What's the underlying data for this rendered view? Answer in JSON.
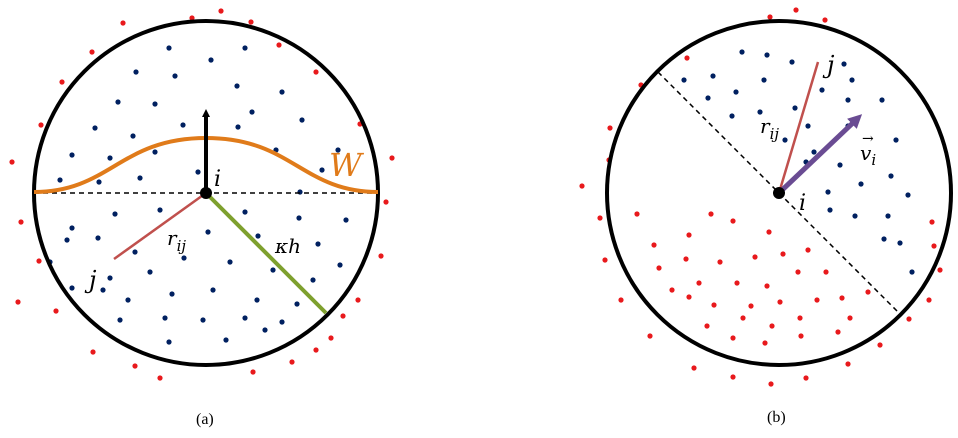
{
  "panel_a": {
    "caption": "(a)",
    "label_i": "i",
    "label_j": "j",
    "label_W": "W",
    "label_r": "r",
    "label_r_sub": "ij",
    "label_kh": "κh",
    "colors": {
      "circle": "#000000",
      "kernel": "#e07b1a",
      "radius": "#7ea02e",
      "rij": "#c0504d",
      "dot_inside": "#002060",
      "dot_outside": "#e8191c"
    }
  },
  "panel_b": {
    "caption": "(b)",
    "label_i": "i",
    "label_j": "j",
    "label_r": "r",
    "label_r_sub": "ij",
    "label_v": "v",
    "label_v_sub": "i",
    "label_v_arrow": "→",
    "colors": {
      "circle": "#000000",
      "velocity": "#6a4c93",
      "rij": "#c0504d",
      "dot_inside": "#002060",
      "dot_red": "#e8191c"
    }
  }
}
